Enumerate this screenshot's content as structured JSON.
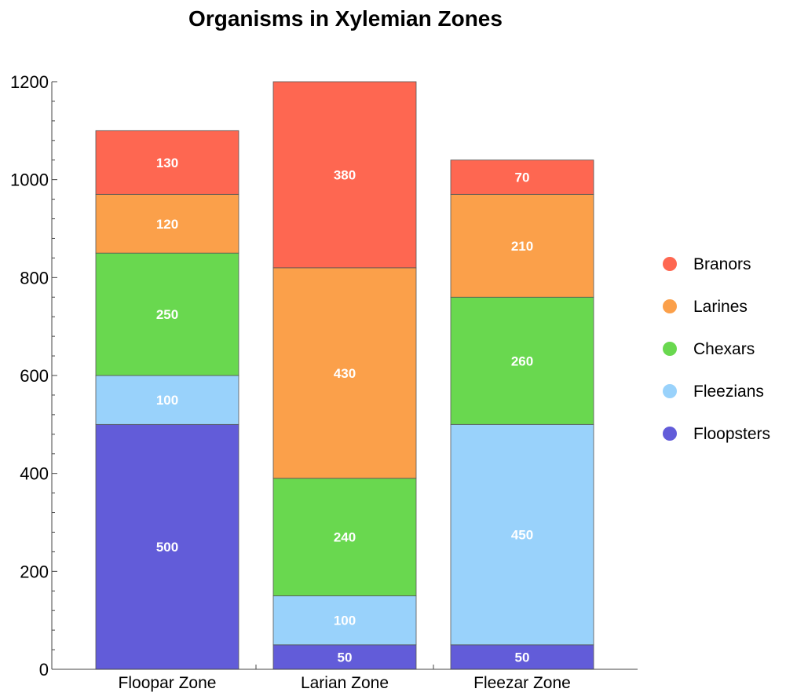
{
  "chart_data": {
    "type": "bar",
    "stacked": true,
    "title": "Organisms in Xylemian Zones",
    "xlabel": "",
    "ylabel": "",
    "categories": [
      "Floopar Zone",
      "Larian Zone",
      "Fleezar Zone"
    ],
    "series": [
      {
        "name": "Floopsters",
        "color": "#625cd9",
        "values": [
          500,
          50,
          50
        ]
      },
      {
        "name": "Fleezians",
        "color": "#99d2fb",
        "values": [
          100,
          100,
          450
        ]
      },
      {
        "name": "Chexars",
        "color": "#69d84f",
        "values": [
          250,
          240,
          260
        ]
      },
      {
        "name": "Larines",
        "color": "#fba04a",
        "values": [
          120,
          430,
          210
        ]
      },
      {
        "name": "Branors",
        "color": "#fe6751",
        "values": [
          130,
          380,
          70
        ]
      }
    ],
    "ylim": [
      0,
      1200
    ],
    "yticks": [
      0,
      200,
      400,
      600,
      800,
      1000,
      1200
    ],
    "legend_position": "right",
    "legend_order": [
      "Branors",
      "Larines",
      "Chexars",
      "Fleezians",
      "Floopsters"
    ],
    "grid": false
  }
}
